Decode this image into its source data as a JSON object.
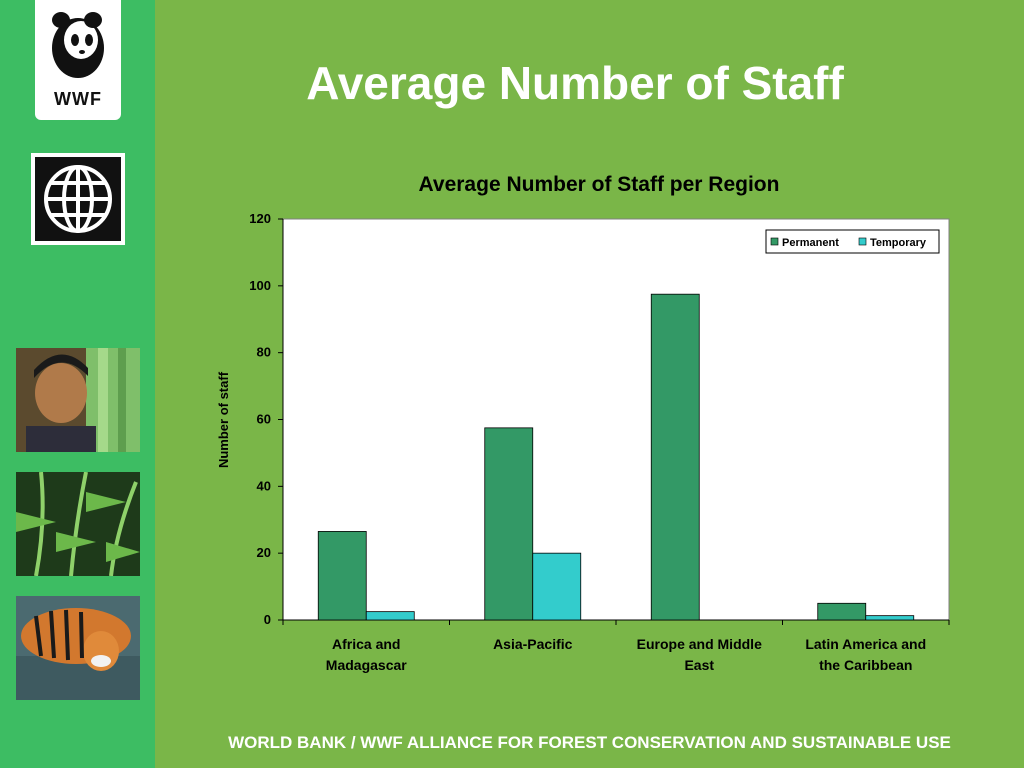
{
  "slide": {
    "title": "Average Number of Staff",
    "footer": "WORLD BANK / WWF ALLIANCE FOR FOREST CONSERVATION AND SUSTAINABLE USE"
  },
  "logos": {
    "wwf_text": "WWF"
  },
  "colors": {
    "background": "#7ab648",
    "sidebar": "#3dbd63",
    "permanent": "#339966",
    "temporary": "#33cccc"
  },
  "chart_data": {
    "type": "bar",
    "title": "Average Number of  Staff per Region",
    "xlabel": "",
    "ylabel": "Number of staff",
    "ylim": [
      0,
      120
    ],
    "yticks": [
      0,
      20,
      40,
      60,
      80,
      100,
      120
    ],
    "categories": [
      [
        "Africa and",
        "Madagascar"
      ],
      [
        "Asia-Pacific"
      ],
      [
        "Europe and Middle",
        "East"
      ],
      [
        "Latin America and",
        "the Caribbean"
      ]
    ],
    "series": [
      {
        "name": "Permanent",
        "values": [
          26.5,
          57.5,
          97.5,
          5
        ]
      },
      {
        "name": "Temporary",
        "values": [
          2.5,
          20,
          0,
          1.3
        ]
      }
    ],
    "legend_position": "top-right",
    "grid": false
  }
}
